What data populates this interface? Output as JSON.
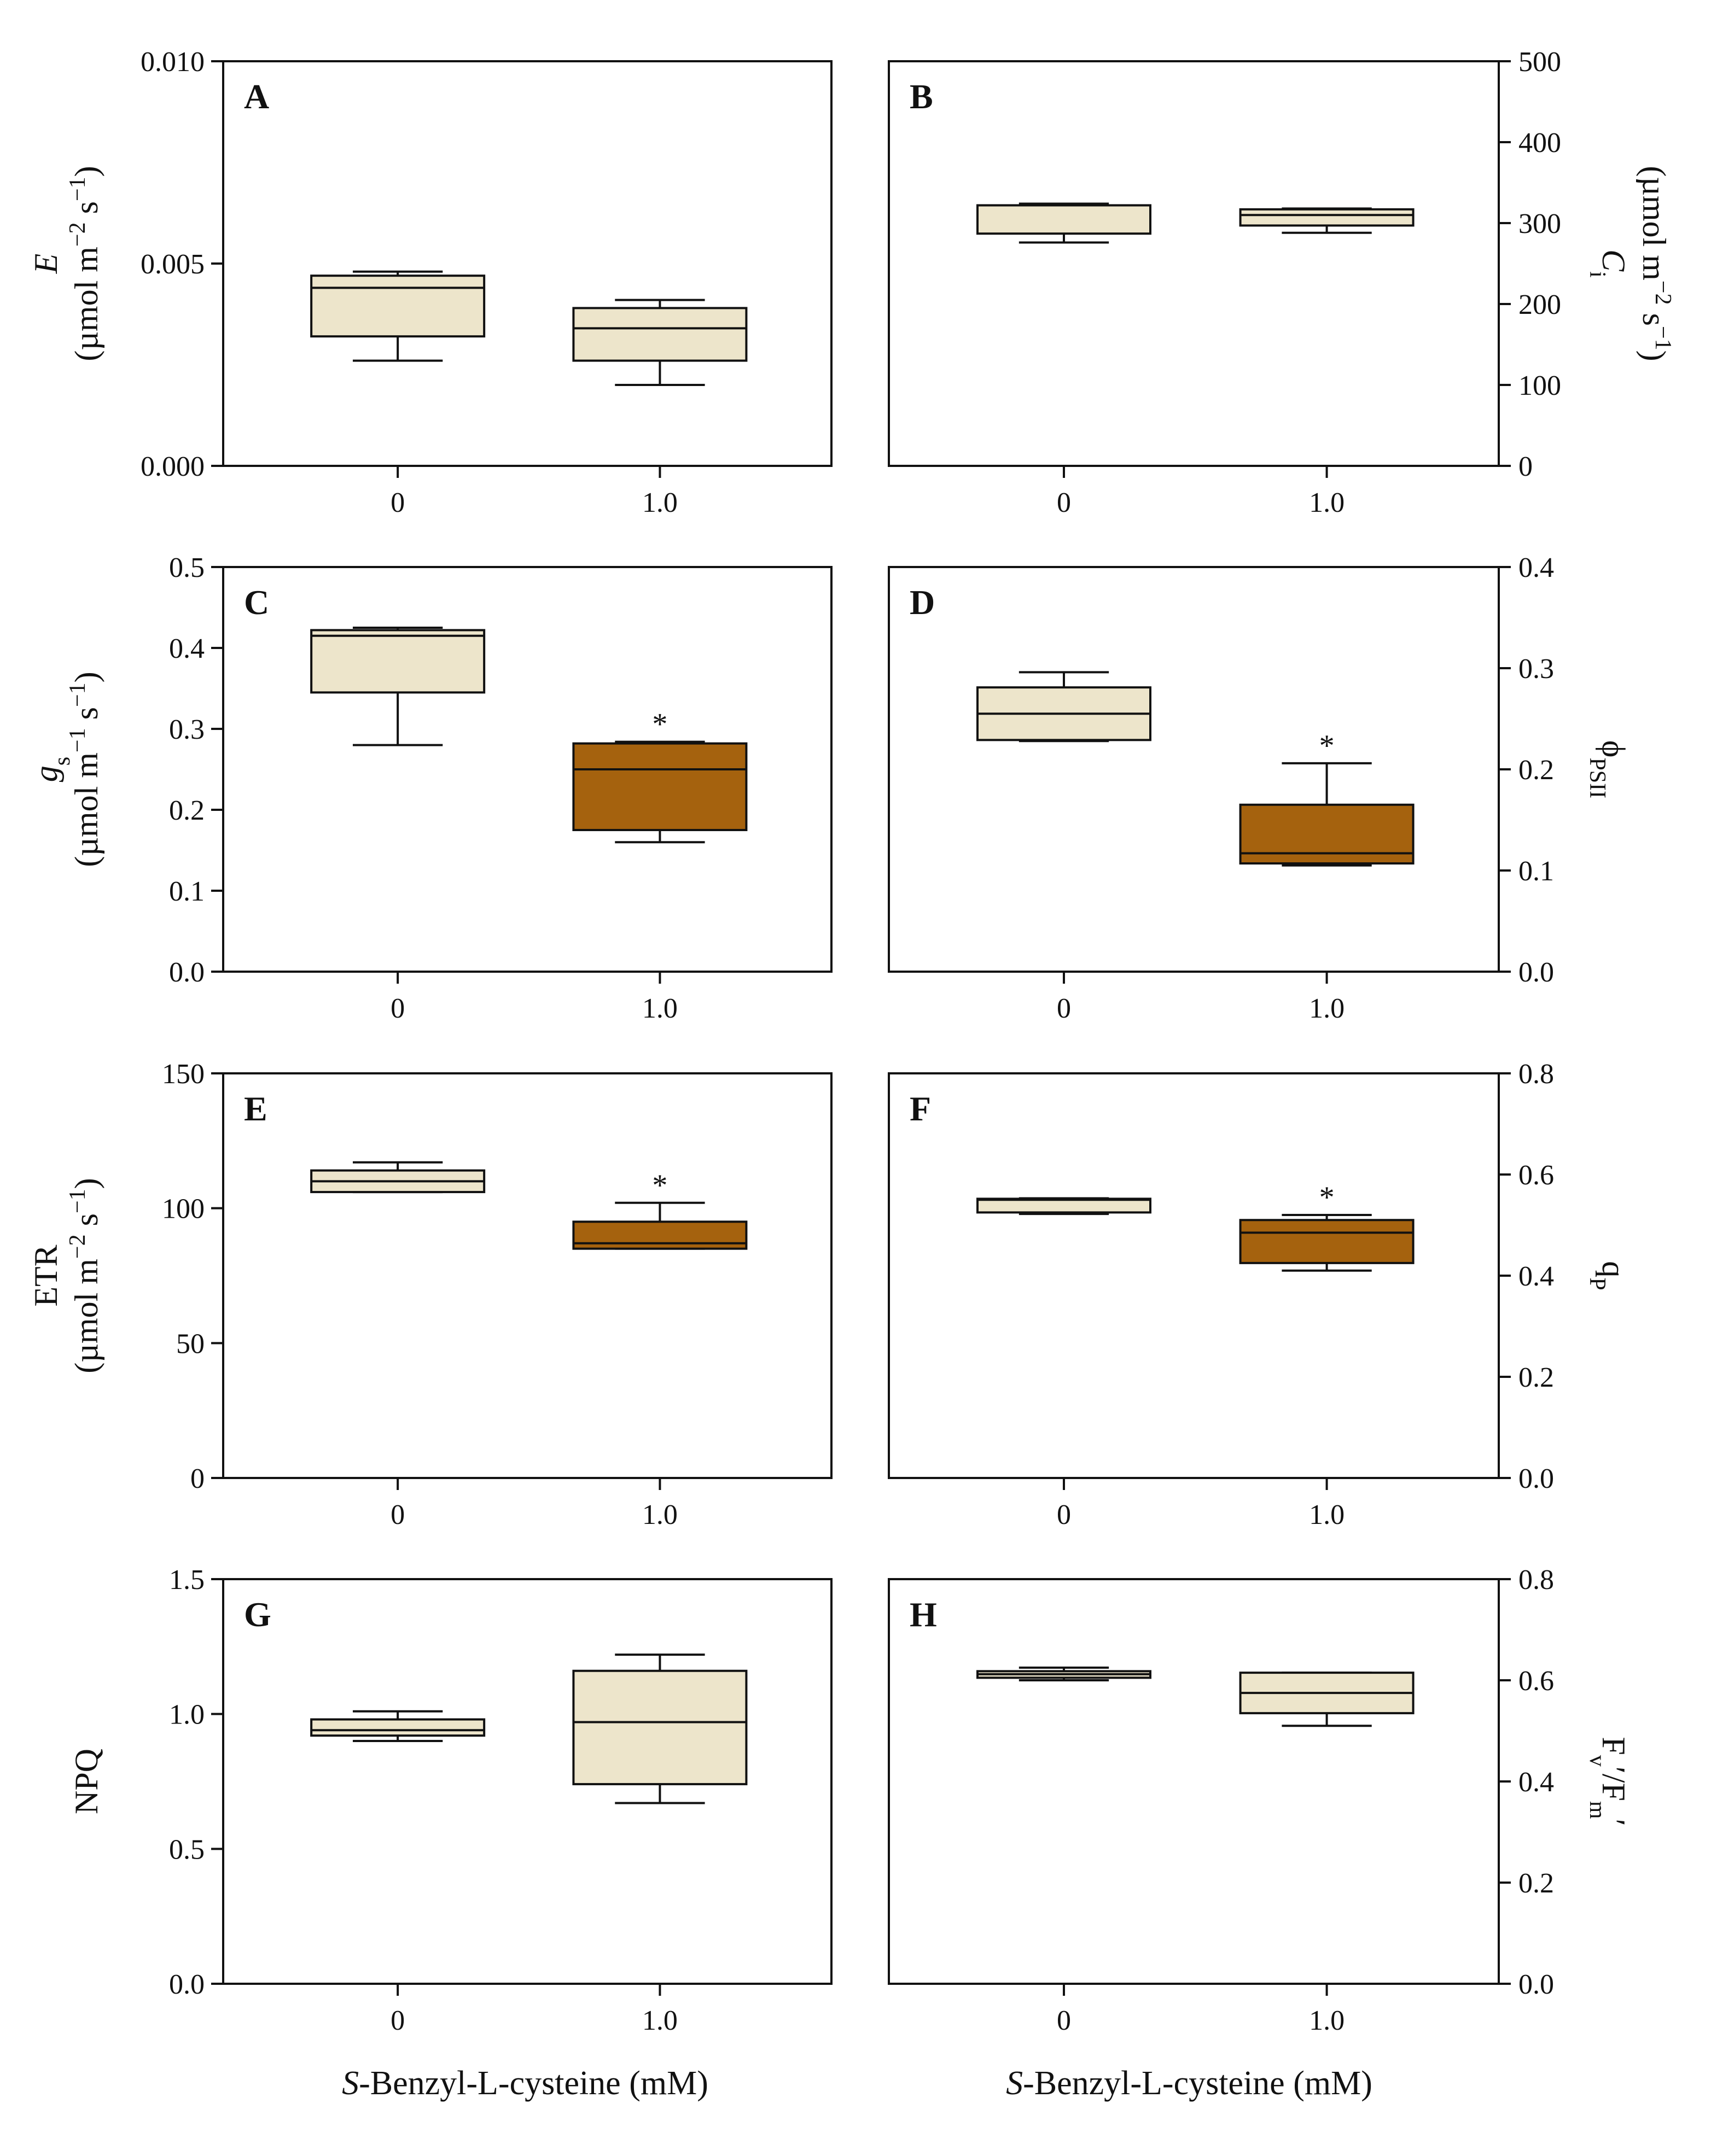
{
  "figure": {
    "x_axis_title_left": {
      "italic": "S",
      "rest": "-Benzyl-L-cysteine (mM)"
    },
    "x_axis_title_right": {
      "italic": "S",
      "rest": "-Benzyl-L-cysteine (mM)"
    }
  },
  "colors": {
    "control_fill": "#EDE5CB",
    "treated_fill": "#A5620E",
    "stroke": "#111111"
  },
  "chart_data": [
    {
      "type": "box",
      "panel": "A",
      "axis_side": "left",
      "categories": [
        "0",
        "1.0"
      ],
      "ylim": [
        0,
        0.01
      ],
      "yticks": [
        "0.000",
        "0.005",
        "0.010"
      ],
      "ytick_values": [
        0,
        0.005,
        0.01
      ],
      "ylabel_lines": [
        [
          {
            "t": "E",
            "i": true
          }
        ],
        [
          {
            "t": "(µmol m"
          },
          {
            "t": "−2",
            "sup": true
          },
          {
            "t": " s"
          },
          {
            "t": "−1",
            "sup": true
          },
          {
            "t": ")"
          }
        ]
      ],
      "boxes": [
        {
          "category": "0",
          "whisker_low": 0.0026,
          "q1": 0.0032,
          "median": 0.0044,
          "q3": 0.0047,
          "whisker_high": 0.0048,
          "significant": false,
          "fill": "control"
        },
        {
          "category": "1.0",
          "whisker_low": 0.002,
          "q1": 0.0026,
          "median": 0.0034,
          "q3": 0.0039,
          "whisker_high": 0.0041,
          "significant": false,
          "fill": "control"
        }
      ]
    },
    {
      "type": "box",
      "panel": "B",
      "axis_side": "right",
      "categories": [
        "0",
        "1.0"
      ],
      "ylim": [
        0,
        500
      ],
      "yticks": [
        "0",
        "100",
        "200",
        "300",
        "400",
        "500"
      ],
      "ytick_values": [
        0,
        100,
        200,
        300,
        400,
        500
      ],
      "ylabel_lines": [
        [
          {
            "t": "C",
            "i": true
          },
          {
            "t": "i",
            "sub": true
          }
        ],
        [
          {
            "t": "(µmol m"
          },
          {
            "t": "−2",
            "sup": true
          },
          {
            "t": " s"
          },
          {
            "t": "−1",
            "sup": true
          },
          {
            "t": ")"
          }
        ]
      ],
      "boxes": [
        {
          "category": "0",
          "whisker_low": 276,
          "q1": 287,
          "median": 322,
          "q3": 322,
          "whisker_high": 324,
          "significant": false,
          "fill": "control"
        },
        {
          "category": "1.0",
          "whisker_low": 288,
          "q1": 297,
          "median": 310,
          "q3": 317,
          "whisker_high": 318,
          "significant": false,
          "fill": "control"
        }
      ]
    },
    {
      "type": "box",
      "panel": "C",
      "axis_side": "left",
      "categories": [
        "0",
        "1.0"
      ],
      "ylim": [
        0,
        0.5
      ],
      "yticks": [
        "0.0",
        "0.1",
        "0.2",
        "0.3",
        "0.4",
        "0.5"
      ],
      "ytick_values": [
        0,
        0.1,
        0.2,
        0.3,
        0.4,
        0.5
      ],
      "ylabel_lines": [
        [
          {
            "t": "g",
            "i": true
          },
          {
            "t": "s",
            "sub": true
          }
        ],
        [
          {
            "t": "(µmol m"
          },
          {
            "t": "−1",
            "sup": true
          },
          {
            "t": " s"
          },
          {
            "t": "−1",
            "sup": true
          },
          {
            "t": ")"
          }
        ]
      ],
      "boxes": [
        {
          "category": "0",
          "whisker_low": 0.28,
          "q1": 0.345,
          "median": 0.415,
          "q3": 0.422,
          "whisker_high": 0.425,
          "significant": false,
          "fill": "control"
        },
        {
          "category": "1.0",
          "whisker_low": 0.16,
          "q1": 0.175,
          "median": 0.25,
          "q3": 0.282,
          "whisker_high": 0.284,
          "significant": true,
          "fill": "treated"
        }
      ]
    },
    {
      "type": "box",
      "panel": "D",
      "axis_side": "right",
      "categories": [
        "0",
        "1.0"
      ],
      "ylim": [
        0,
        0.4
      ],
      "yticks": [
        "0.0",
        "0.1",
        "0.2",
        "0.3",
        "0.4"
      ],
      "ytick_values": [
        0,
        0.1,
        0.2,
        0.3,
        0.4
      ],
      "ylabel_lines": [
        [
          {
            "t": "ϕ"
          },
          {
            "t": "PSII",
            "sub": true
          }
        ]
      ],
      "boxes": [
        {
          "category": "0",
          "whisker_low": 0.228,
          "q1": 0.229,
          "median": 0.255,
          "q3": 0.281,
          "whisker_high": 0.296,
          "significant": false,
          "fill": "control"
        },
        {
          "category": "1.0",
          "whisker_low": 0.105,
          "q1": 0.107,
          "median": 0.117,
          "q3": 0.165,
          "whisker_high": 0.206,
          "significant": true,
          "fill": "treated"
        }
      ]
    },
    {
      "type": "box",
      "panel": "E",
      "axis_side": "left",
      "categories": [
        "0",
        "1.0"
      ],
      "ylim": [
        0,
        150
      ],
      "yticks": [
        "0",
        "50",
        "100",
        "150"
      ],
      "ytick_values": [
        0,
        50,
        100,
        150
      ],
      "ylabel_lines": [
        [
          {
            "t": "ETR"
          }
        ],
        [
          {
            "t": "(µmol m"
          },
          {
            "t": "−2",
            "sup": true
          },
          {
            "t": " s"
          },
          {
            "t": "−1",
            "sup": true
          },
          {
            "t": ")"
          }
        ]
      ],
      "boxes": [
        {
          "category": "0",
          "whisker_low": 106,
          "q1": 106,
          "median": 110,
          "q3": 114,
          "whisker_high": 117,
          "significant": false,
          "fill": "control"
        },
        {
          "category": "1.0",
          "whisker_low": 85,
          "q1": 85,
          "median": 87,
          "q3": 95,
          "whisker_high": 102,
          "significant": true,
          "fill": "treated"
        }
      ]
    },
    {
      "type": "box",
      "panel": "F",
      "axis_side": "right",
      "categories": [
        "0",
        "1.0"
      ],
      "ylim": [
        0,
        0.8
      ],
      "yticks": [
        "0.0",
        "0.2",
        "0.4",
        "0.6",
        "0.8"
      ],
      "ytick_values": [
        0,
        0.2,
        0.4,
        0.6,
        0.8
      ],
      "ylabel_lines": [
        [
          {
            "t": "q"
          },
          {
            "t": "P",
            "sub": true
          }
        ]
      ],
      "boxes": [
        {
          "category": "0",
          "whisker_low": 0.522,
          "q1": 0.525,
          "median": 0.55,
          "q3": 0.552,
          "whisker_high": 0.553,
          "significant": false,
          "fill": "control"
        },
        {
          "category": "1.0",
          "whisker_low": 0.41,
          "q1": 0.425,
          "median": 0.485,
          "q3": 0.51,
          "whisker_high": 0.52,
          "significant": true,
          "fill": "treated"
        }
      ]
    },
    {
      "type": "box",
      "panel": "G",
      "axis_side": "left",
      "categories": [
        "0",
        "1.0"
      ],
      "ylim": [
        0,
        1.5
      ],
      "yticks": [
        "0.0",
        "0.5",
        "1.0",
        "1.5"
      ],
      "ytick_values": [
        0,
        0.5,
        1.0,
        1.5
      ],
      "ylabel_lines": [
        [
          {
            "t": "NPQ"
          }
        ]
      ],
      "boxes": [
        {
          "category": "0",
          "whisker_low": 0.9,
          "q1": 0.92,
          "median": 0.94,
          "q3": 0.98,
          "whisker_high": 1.01,
          "significant": false,
          "fill": "control"
        },
        {
          "category": "1.0",
          "whisker_low": 0.67,
          "q1": 0.74,
          "median": 0.97,
          "q3": 1.16,
          "whisker_high": 1.22,
          "significant": false,
          "fill": "control"
        }
      ]
    },
    {
      "type": "box",
      "panel": "H",
      "axis_side": "right",
      "categories": [
        "0",
        "1.0"
      ],
      "ylim": [
        0,
        0.8
      ],
      "yticks": [
        "0.0",
        "0.2",
        "0.4",
        "0.6",
        "0.8"
      ],
      "ytick_values": [
        0,
        0.2,
        0.4,
        0.6,
        0.8
      ],
      "ylabel_lines": [
        [
          {
            "t": "F"
          },
          {
            "t": "v",
            "sub": true
          },
          {
            "t": "′/F"
          },
          {
            "t": "m",
            "sub": true
          },
          {
            "t": "′"
          }
        ]
      ],
      "boxes": [
        {
          "category": "0",
          "whisker_low": 0.6,
          "q1": 0.605,
          "median": 0.612,
          "q3": 0.618,
          "whisker_high": 0.625,
          "significant": false,
          "fill": "control"
        },
        {
          "category": "1.0",
          "whisker_low": 0.51,
          "q1": 0.535,
          "median": 0.575,
          "q3": 0.615,
          "whisker_high": 0.615,
          "significant": false,
          "fill": "control"
        }
      ]
    }
  ]
}
